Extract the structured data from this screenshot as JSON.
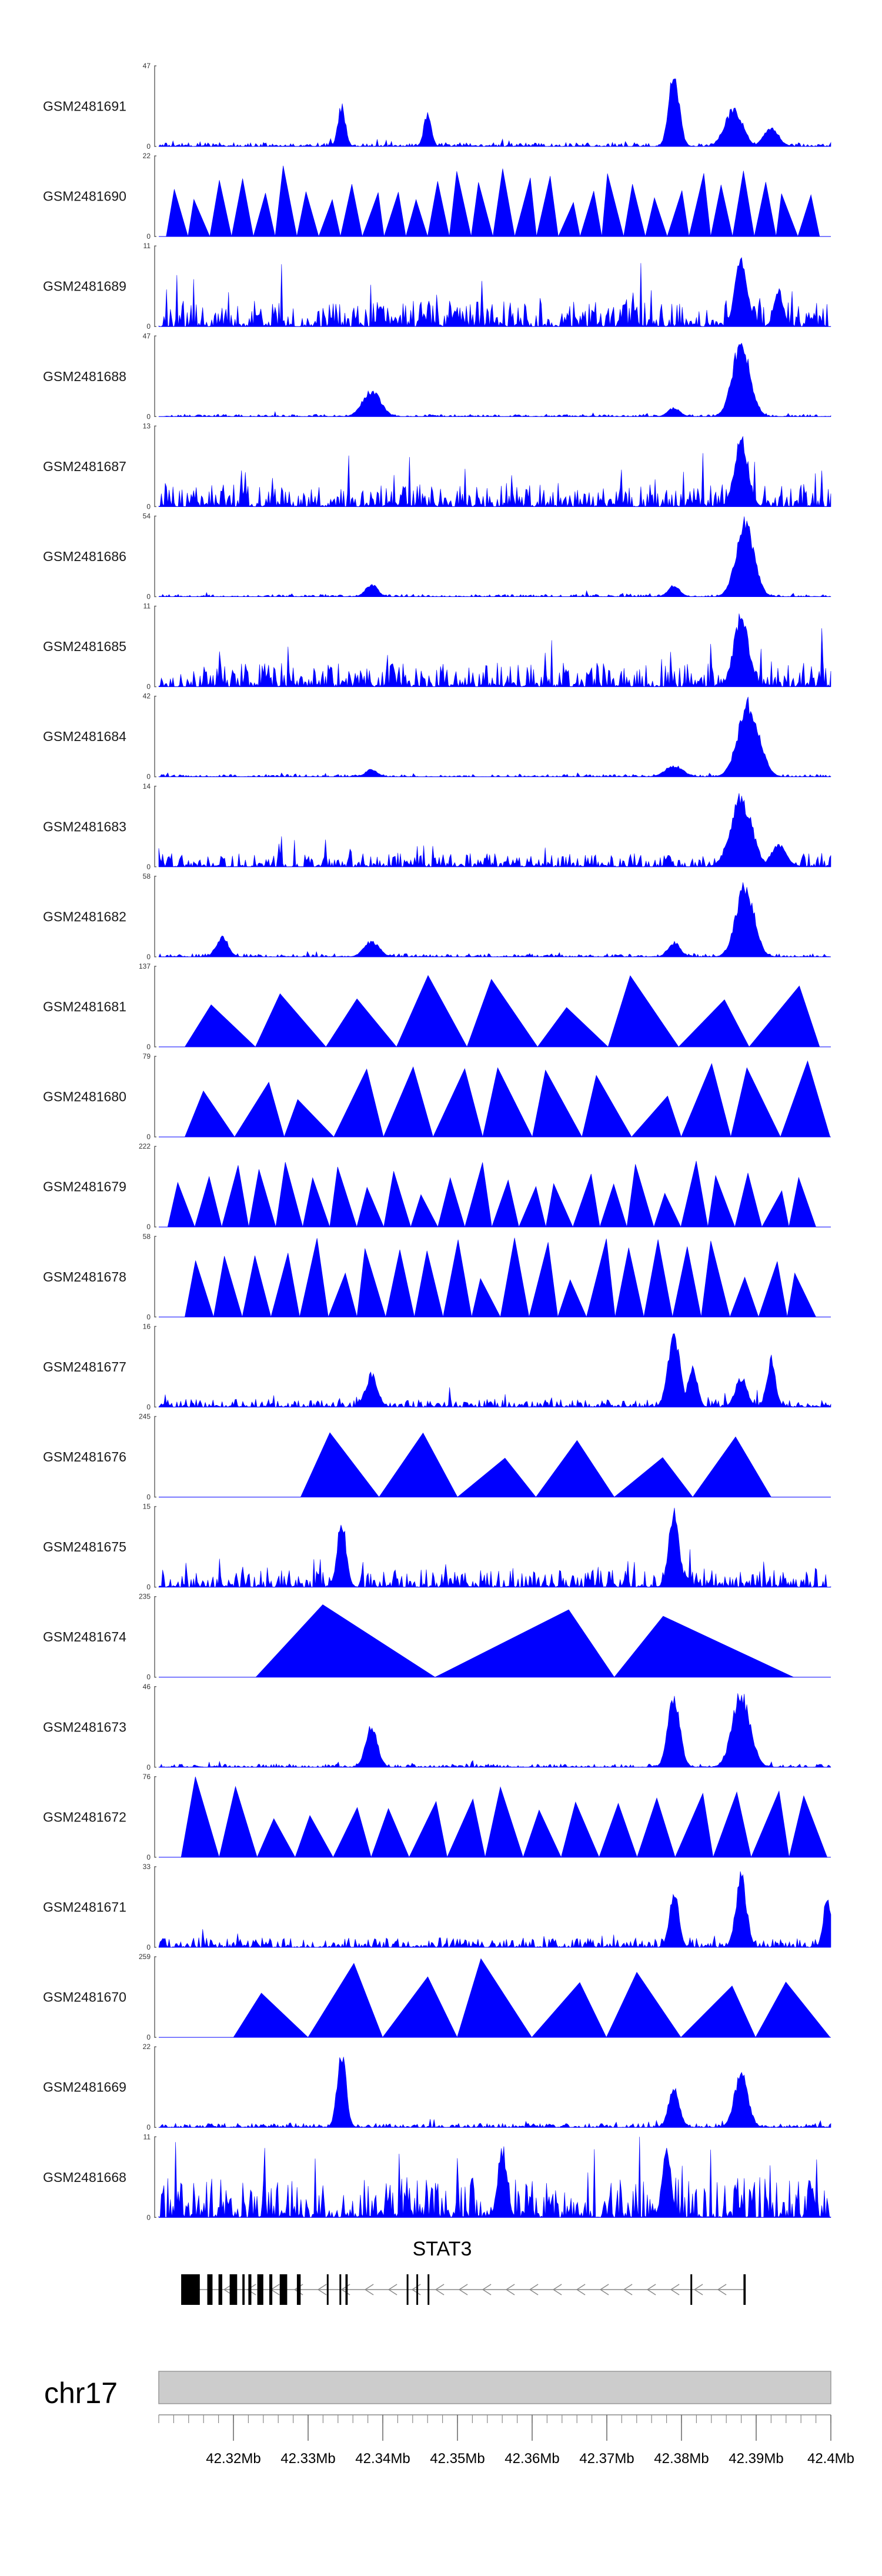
{
  "chart_data": {
    "type": "area",
    "title": "",
    "x_range_mb": [
      42.31,
      42.4
    ],
    "track_color": "#0000ff",
    "tracks": [
      {
        "name": "GSM2481691",
        "ymax": 47,
        "ymin": 0,
        "style": "dense",
        "seed": 11,
        "noise": 0.05,
        "peaks": [
          [
            42.3345,
            0.55,
            0.0005
          ],
          [
            42.346,
            0.45,
            0.0005
          ],
          [
            42.379,
            1.0,
            0.0007
          ],
          [
            42.387,
            0.5,
            0.0012
          ],
          [
            42.392,
            0.25,
            0.001
          ]
        ]
      },
      {
        "name": "GSM2481690",
        "ymax": 22,
        "ymin": 0,
        "style": "sparse",
        "seed": 12,
        "segments": 30,
        "start": 42.311,
        "end": 42.3985,
        "tall": 0.9
      },
      {
        "name": "GSM2481689",
        "ymax": 11,
        "ymin": 0,
        "style": "dense",
        "seed": 13,
        "noise": 0.32,
        "peaks": [
          [
            42.388,
            0.95,
            0.0008
          ],
          [
            42.393,
            0.5,
            0.0006
          ]
        ]
      },
      {
        "name": "GSM2481688",
        "ymax": 47,
        "ymin": 0,
        "style": "dense",
        "seed": 14,
        "noise": 0.03,
        "peaks": [
          [
            42.3385,
            0.35,
            0.0012
          ],
          [
            42.379,
            0.12,
            0.0008
          ],
          [
            42.388,
            1.0,
            0.0012
          ]
        ]
      },
      {
        "name": "GSM2481687",
        "ymax": 13,
        "ymin": 0,
        "style": "dense",
        "seed": 15,
        "noise": 0.28,
        "peaks": [
          [
            42.388,
            0.95,
            0.0009
          ]
        ]
      },
      {
        "name": "GSM2481686",
        "ymax": 54,
        "ymin": 0,
        "style": "dense",
        "seed": 16,
        "noise": 0.03,
        "peaks": [
          [
            42.3385,
            0.17,
            0.0008
          ],
          [
            42.379,
            0.15,
            0.0008
          ],
          [
            42.3885,
            1.0,
            0.0012
          ]
        ]
      },
      {
        "name": "GSM2481685",
        "ymax": 11,
        "ymin": 0,
        "style": "dense",
        "seed": 17,
        "noise": 0.3,
        "peaks": [
          [
            42.388,
            0.95,
            0.001
          ]
        ]
      },
      {
        "name": "GSM2481684",
        "ymax": 42,
        "ymin": 0,
        "style": "dense",
        "seed": 18,
        "noise": 0.03,
        "peaks": [
          [
            42.3385,
            0.1,
            0.0008
          ],
          [
            42.379,
            0.15,
            0.0012
          ],
          [
            42.389,
            1.0,
            0.0014
          ]
        ]
      },
      {
        "name": "GSM2481683",
        "ymax": 14,
        "ymin": 0,
        "style": "dense",
        "seed": 19,
        "noise": 0.17,
        "peaks": [
          [
            42.388,
            0.95,
            0.0014
          ],
          [
            42.393,
            0.3,
            0.001
          ]
        ]
      },
      {
        "name": "GSM2481682",
        "ymax": 58,
        "ymin": 0,
        "style": "dense",
        "seed": 20,
        "noise": 0.04,
        "peaks": [
          [
            42.3185,
            0.28,
            0.0008
          ],
          [
            42.3385,
            0.22,
            0.001
          ],
          [
            42.379,
            0.2,
            0.0008
          ],
          [
            42.3885,
            1.0,
            0.0012
          ]
        ]
      },
      {
        "name": "GSM2481681",
        "ymax": 137,
        "ymin": 0,
        "style": "sparse",
        "seed": 21,
        "segments": 9,
        "start": 42.3135,
        "end": 42.3985,
        "tall": 0.95
      },
      {
        "name": "GSM2481680",
        "ymax": 79,
        "ymin": 0,
        "style": "sparse",
        "seed": 22,
        "segments": 13,
        "start": 42.3135,
        "end": 42.3999,
        "tall": 0.95
      },
      {
        "name": "GSM2481679",
        "ymax": 222,
        "ymin": 0,
        "style": "sparse",
        "seed": 23,
        "segments": 24,
        "start": 42.3112,
        "end": 42.398,
        "tall": 0.85
      },
      {
        "name": "GSM2481678",
        "ymax": 58,
        "ymin": 0,
        "style": "sparse",
        "seed": 24,
        "segments": 22,
        "start": 42.3135,
        "end": 42.398,
        "tall": 1.0
      },
      {
        "name": "GSM2481677",
        "ymax": 16,
        "ymin": 0,
        "style": "dense",
        "seed": 25,
        "noise": 0.1,
        "peaks": [
          [
            42.3385,
            0.45,
            0.0008
          ],
          [
            42.379,
            1.0,
            0.0008
          ],
          [
            42.3815,
            0.6,
            0.0006
          ],
          [
            42.388,
            0.4,
            0.0008
          ],
          [
            42.392,
            0.65,
            0.0006
          ]
        ]
      },
      {
        "name": "GSM2481676",
        "ymax": 245,
        "ymin": 0,
        "style": "sparse",
        "seed": 26,
        "segments": 6,
        "start": 42.329,
        "end": 42.392,
        "tall": 1.0
      },
      {
        "name": "GSM2481675",
        "ymax": 15,
        "ymin": 0,
        "style": "dense",
        "seed": 27,
        "noise": 0.22,
        "peaks": [
          [
            42.3345,
            0.9,
            0.0006
          ],
          [
            42.379,
            1.0,
            0.0007
          ]
        ]
      },
      {
        "name": "GSM2481674",
        "ymax": 235,
        "ymin": 0,
        "style": "sparse",
        "seed": 28,
        "segments": 3,
        "start": 42.323,
        "end": 42.395,
        "tall": 1.0
      },
      {
        "name": "GSM2481673",
        "ymax": 46,
        "ymin": 0,
        "style": "dense",
        "seed": 29,
        "noise": 0.04,
        "peaks": [
          [
            42.3385,
            0.55,
            0.0008
          ],
          [
            42.379,
            0.95,
            0.0008
          ],
          [
            42.388,
            1.0,
            0.0012
          ]
        ]
      },
      {
        "name": "GSM2481672",
        "ymax": 76,
        "ymin": 0,
        "style": "sparse",
        "seed": 30,
        "segments": 17,
        "start": 42.313,
        "end": 42.3995,
        "tall": 1.0
      },
      {
        "name": "GSM2481671",
        "ymax": 33,
        "ymin": 0,
        "style": "dense",
        "seed": 31,
        "noise": 0.12,
        "peaks": [
          [
            42.379,
            0.8,
            0.0006
          ],
          [
            42.388,
            1.0,
            0.0007
          ],
          [
            42.3995,
            0.7,
            0.0005
          ]
        ]
      },
      {
        "name": "GSM2481670",
        "ymax": 259,
        "ymin": 0,
        "style": "sparse",
        "seed": 32,
        "segments": 8,
        "start": 42.32,
        "end": 42.3999,
        "tall": 1.0
      },
      {
        "name": "GSM2481669",
        "ymax": 22,
        "ymin": 0,
        "style": "dense",
        "seed": 33,
        "noise": 0.05,
        "peaks": [
          [
            42.3345,
            1.0,
            0.0006
          ],
          [
            42.379,
            0.55,
            0.0007
          ],
          [
            42.388,
            0.75,
            0.0009
          ]
        ]
      },
      {
        "name": "GSM2481668",
        "ymax": 11,
        "ymin": 0,
        "style": "dense",
        "seed": 34,
        "noise": 0.5,
        "peaks": [
          [
            42.356,
            0.95,
            0.0006
          ],
          [
            42.378,
            0.9,
            0.0006
          ]
        ]
      }
    ],
    "gene": {
      "name": "STAT3",
      "start": 42.313,
      "end": 42.3885,
      "strand": "-",
      "exons": [
        [
          42.313,
          42.3155
        ],
        [
          42.3165,
          42.3172
        ],
        [
          42.318,
          42.3185
        ],
        [
          42.3195,
          42.3205
        ],
        [
          42.3212,
          42.3215
        ],
        [
          42.322,
          42.3224
        ],
        [
          42.3232,
          42.324
        ],
        [
          42.3248,
          42.3252
        ],
        [
          42.3262,
          42.3272
        ],
        [
          42.3285,
          42.329
        ],
        [
          42.3325,
          42.3327
        ],
        [
          42.3342,
          42.3344
        ],
        [
          42.335,
          42.3353
        ],
        [
          42.3432,
          42.3434
        ],
        [
          42.3445,
          42.3447
        ],
        [
          42.346,
          42.3462
        ],
        [
          42.3812,
          42.3814
        ],
        [
          42.3883,
          42.3886
        ]
      ]
    },
    "chromosome": "chr17",
    "x_ticks_labeled": [
      "42.32Mb",
      "42.33Mb",
      "42.34Mb",
      "42.35Mb",
      "42.36Mb",
      "42.37Mb",
      "42.38Mb",
      "42.39Mb",
      "42.4Mb"
    ],
    "x_tick_values": [
      42.32,
      42.33,
      42.34,
      42.35,
      42.36,
      42.37,
      42.38,
      42.39,
      42.4
    ],
    "minor_tick_step": 0.002
  }
}
